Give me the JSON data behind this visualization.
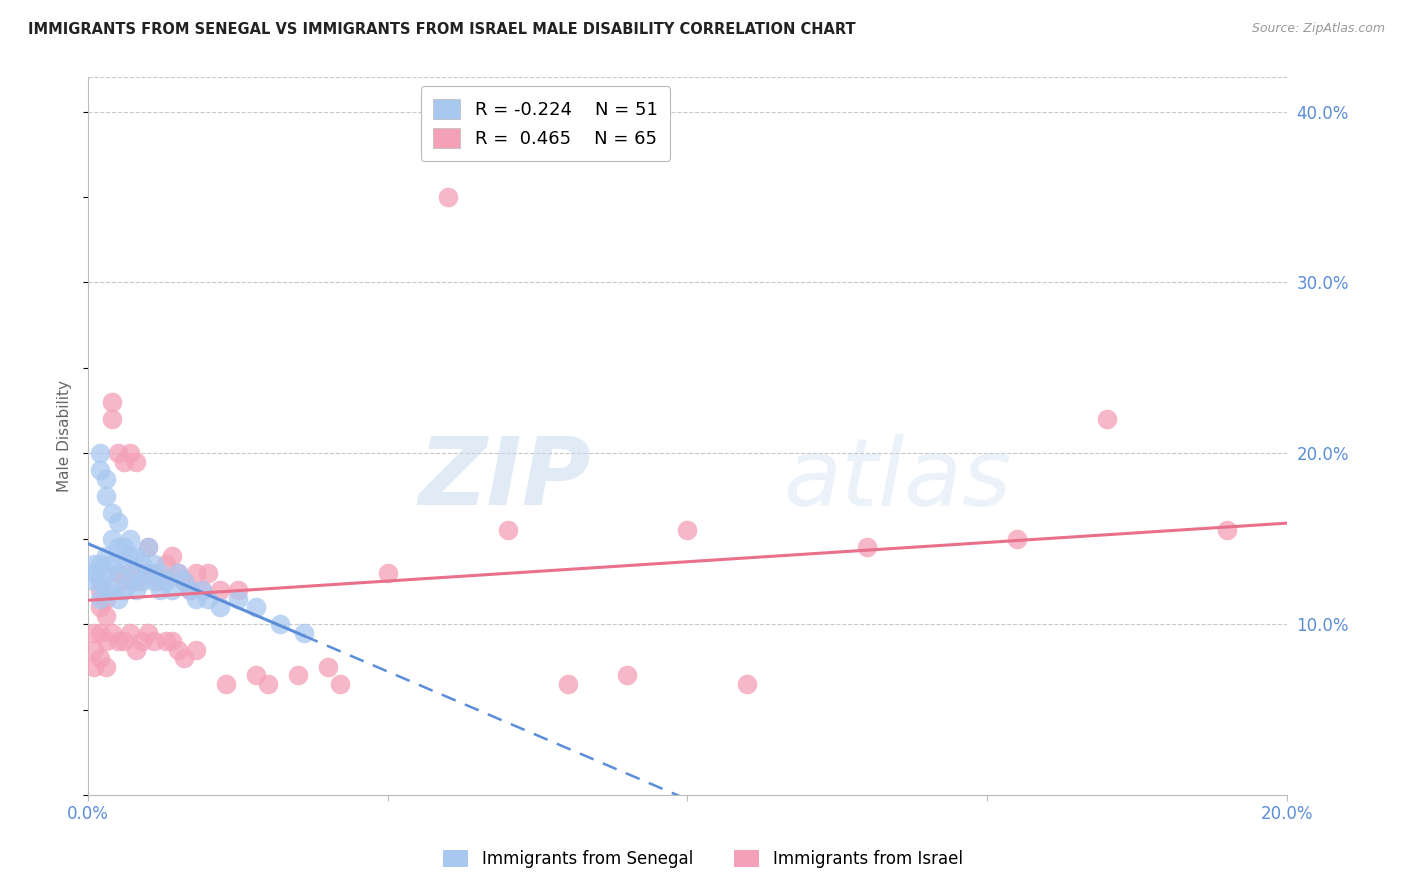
{
  "title": "IMMIGRANTS FROM SENEGAL VS IMMIGRANTS FROM ISRAEL MALE DISABILITY CORRELATION CHART",
  "source": "Source: ZipAtlas.com",
  "ylabel": "Male Disability",
  "xlim": [
    0.0,
    0.2
  ],
  "ylim": [
    0.0,
    0.42
  ],
  "x_ticks": [
    0.0,
    0.05,
    0.1,
    0.15,
    0.2
  ],
  "x_tick_labels": [
    "0.0%",
    "",
    "",
    "",
    "20.0%"
  ],
  "y_ticks_right": [
    0.1,
    0.2,
    0.3,
    0.4
  ],
  "y_tick_labels_right": [
    "10.0%",
    "20.0%",
    "30.0%",
    "40.0%"
  ],
  "legend_r_senegal": "-0.224",
  "legend_n_senegal": "51",
  "legend_r_israel": "0.465",
  "legend_n_israel": "65",
  "color_senegal": "#A8C8F0",
  "color_israel": "#F4A0B8",
  "color_senegal_line": "#5B8DD9",
  "color_israel_line": "#E8708A",
  "color_axis_labels": "#5B8DD9",
  "color_grid": "#C8C8C8",
  "watermark_zip": "ZIP",
  "watermark_atlas": "atlas",
  "senegal_x": [
    0.001,
    0.001,
    0.001,
    0.002,
    0.002,
    0.002,
    0.002,
    0.002,
    0.003,
    0.003,
    0.003,
    0.003,
    0.003,
    0.004,
    0.004,
    0.004,
    0.004,
    0.005,
    0.005,
    0.005,
    0.005,
    0.006,
    0.006,
    0.006,
    0.007,
    0.007,
    0.007,
    0.008,
    0.008,
    0.008,
    0.009,
    0.009,
    0.01,
    0.01,
    0.011,
    0.011,
    0.012,
    0.012,
    0.013,
    0.014,
    0.015,
    0.016,
    0.017,
    0.018,
    0.019,
    0.02,
    0.022,
    0.025,
    0.028,
    0.032,
    0.036
  ],
  "senegal_y": [
    0.13,
    0.125,
    0.135,
    0.2,
    0.19,
    0.135,
    0.125,
    0.115,
    0.185,
    0.175,
    0.14,
    0.13,
    0.12,
    0.165,
    0.15,
    0.135,
    0.12,
    0.16,
    0.145,
    0.13,
    0.115,
    0.145,
    0.135,
    0.12,
    0.15,
    0.14,
    0.125,
    0.14,
    0.13,
    0.12,
    0.135,
    0.125,
    0.145,
    0.13,
    0.135,
    0.125,
    0.13,
    0.12,
    0.125,
    0.12,
    0.13,
    0.125,
    0.12,
    0.115,
    0.12,
    0.115,
    0.11,
    0.115,
    0.11,
    0.1,
    0.095
  ],
  "israel_x": [
    0.001,
    0.001,
    0.001,
    0.002,
    0.002,
    0.002,
    0.002,
    0.003,
    0.003,
    0.003,
    0.003,
    0.004,
    0.004,
    0.004,
    0.005,
    0.005,
    0.005,
    0.006,
    0.006,
    0.006,
    0.007,
    0.007,
    0.007,
    0.008,
    0.008,
    0.008,
    0.009,
    0.009,
    0.01,
    0.01,
    0.011,
    0.011,
    0.012,
    0.013,
    0.013,
    0.014,
    0.014,
    0.015,
    0.015,
    0.016,
    0.016,
    0.017,
    0.018,
    0.018,
    0.019,
    0.02,
    0.022,
    0.023,
    0.025,
    0.028,
    0.03,
    0.035,
    0.04,
    0.042,
    0.05,
    0.06,
    0.07,
    0.08,
    0.09,
    0.1,
    0.11,
    0.13,
    0.155,
    0.17,
    0.19
  ],
  "israel_y": [
    0.095,
    0.085,
    0.075,
    0.12,
    0.11,
    0.095,
    0.08,
    0.115,
    0.105,
    0.09,
    0.075,
    0.23,
    0.22,
    0.095,
    0.2,
    0.13,
    0.09,
    0.195,
    0.125,
    0.09,
    0.2,
    0.13,
    0.095,
    0.195,
    0.125,
    0.085,
    0.13,
    0.09,
    0.145,
    0.095,
    0.13,
    0.09,
    0.125,
    0.135,
    0.09,
    0.14,
    0.09,
    0.13,
    0.085,
    0.125,
    0.08,
    0.12,
    0.13,
    0.085,
    0.12,
    0.13,
    0.12,
    0.065,
    0.12,
    0.07,
    0.065,
    0.07,
    0.075,
    0.065,
    0.13,
    0.35,
    0.155,
    0.065,
    0.07,
    0.155,
    0.065,
    0.145,
    0.15,
    0.22,
    0.155
  ],
  "senegal_line_solid_end": 0.036,
  "senegal_line_r": -0.224,
  "israel_line_r": 0.465
}
